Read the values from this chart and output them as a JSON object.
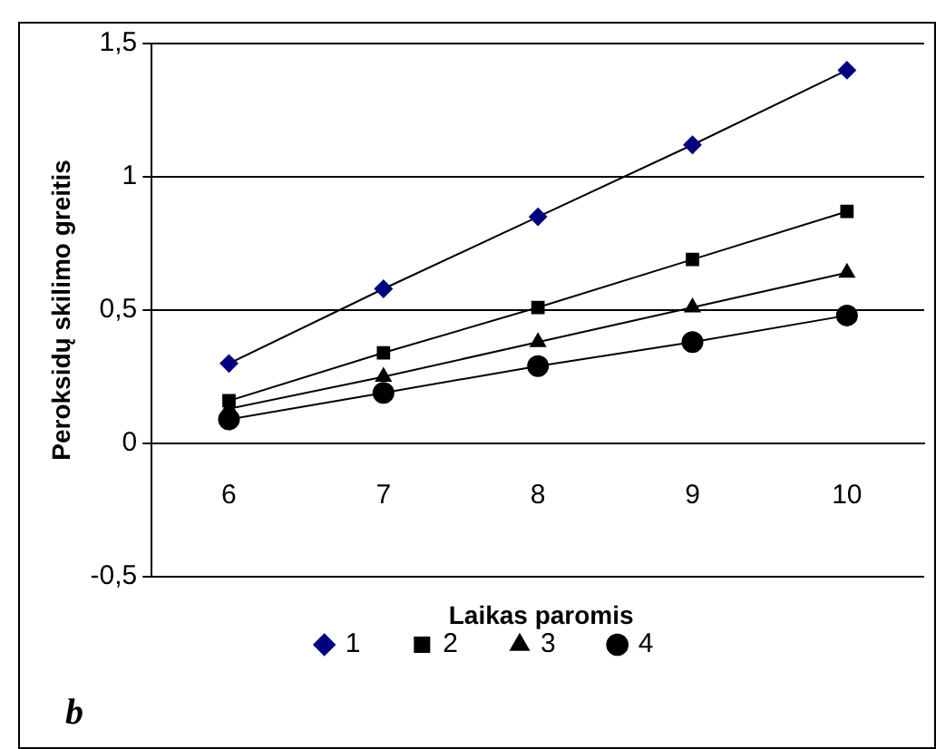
{
  "chart_data": {
    "type": "line",
    "xlabel": "Laikas paromis",
    "ylabel": "Peroksidų skilimo greitis",
    "annotations": [
      "b"
    ],
    "categories": [
      "6",
      "7",
      "8",
      "9",
      "10"
    ],
    "series": [
      {
        "name": "1",
        "color": "#000080",
        "marker": "diamond",
        "values": [
          0.3,
          0.58,
          0.85,
          1.12,
          1.4
        ]
      },
      {
        "name": "2",
        "color": "#000000",
        "marker": "square",
        "values": [
          0.16,
          0.34,
          0.51,
          0.69,
          0.87
        ]
      },
      {
        "name": "3",
        "color": "#000000",
        "marker": "triangle",
        "values": [
          0.13,
          0.25,
          0.38,
          0.51,
          0.64
        ]
      },
      {
        "name": "4",
        "color": "#000000",
        "marker": "circle",
        "values": [
          0.09,
          0.19,
          0.29,
          0.38,
          0.48
        ]
      }
    ],
    "ylim": [
      -0.5,
      1.5
    ],
    "yticks": [
      {
        "value": -0.5,
        "label": "-0,5"
      },
      0,
      {
        "value": 0.5,
        "label": "0,5"
      },
      1,
      {
        "value": 1.5,
        "label": "1,5"
      }
    ],
    "grid": "y",
    "legend": "bottom",
    "line_style": "solid"
  }
}
